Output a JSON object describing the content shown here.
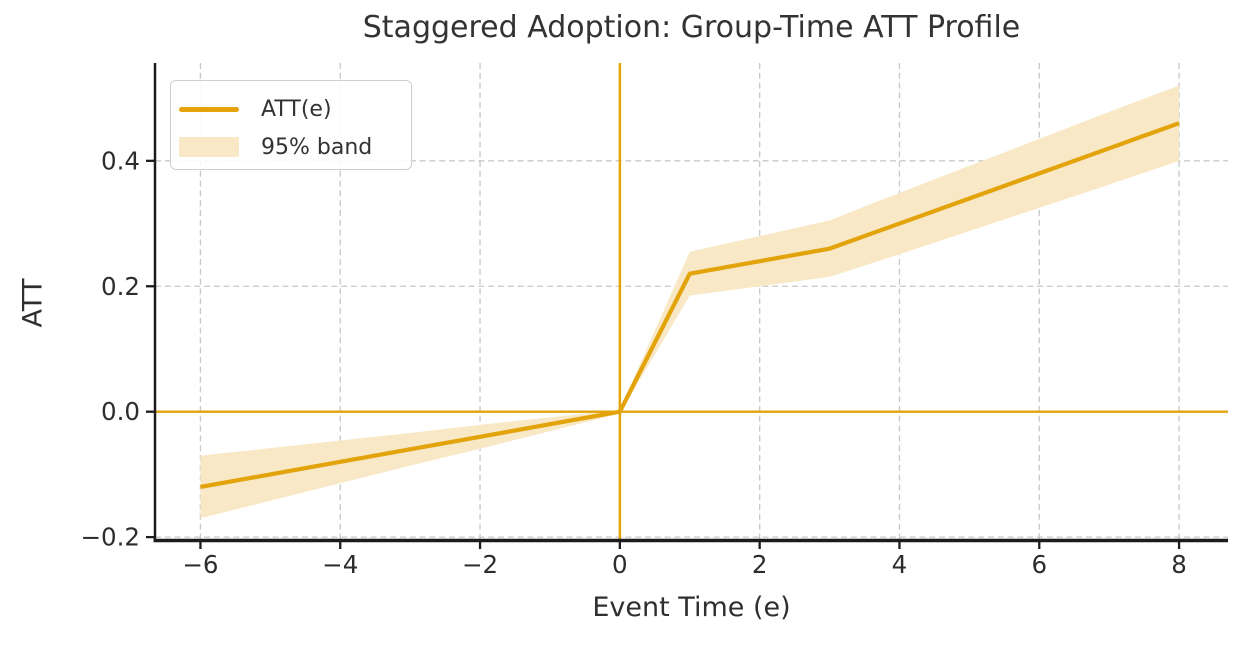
{
  "chart_data": {
    "type": "line",
    "title": "Staggered Adoption: Group-Time ATT Profile",
    "xlabel": "Event Time (e)",
    "ylabel": "ATT",
    "x": [
      -6,
      -5,
      -4,
      -3,
      -2,
      -1,
      0,
      1,
      2,
      3,
      4,
      5,
      6,
      7,
      8
    ],
    "series": [
      {
        "name": "ATT(e)",
        "values": [
          -0.12,
          -0.1,
          -0.08,
          -0.06,
          -0.04,
          -0.02,
          0.0,
          0.22,
          0.24,
          0.26,
          0.3,
          0.34,
          0.38,
          0.42,
          0.46
        ]
      }
    ],
    "band": {
      "name": "95% band",
      "lower": [
        -0.17,
        -0.142,
        -0.114,
        -0.086,
        -0.059,
        -0.031,
        -0.003,
        0.185,
        0.2,
        0.215,
        0.251,
        0.288,
        0.325,
        0.362,
        0.4
      ],
      "upper": [
        -0.07,
        -0.058,
        -0.046,
        -0.034,
        -0.021,
        -0.009,
        0.003,
        0.255,
        0.28,
        0.305,
        0.349,
        0.392,
        0.435,
        0.478,
        0.52
      ]
    },
    "reference_lines": {
      "vline_x": 0,
      "hline_y": 0
    },
    "xlim": [
      -6.65,
      8.7
    ],
    "ylim": [
      -0.203,
      0.556
    ],
    "xticks": [
      -6,
      -4,
      -2,
      0,
      2,
      4,
      6,
      8
    ],
    "xtick_labels": [
      "−6",
      "−4",
      "−2",
      "0",
      "2",
      "4",
      "6",
      "8"
    ],
    "yticks": [
      -0.2,
      0.0,
      0.2,
      0.4
    ],
    "ytick_labels": [
      "−0.2",
      "0.0",
      "0.2",
      "0.4"
    ],
    "grid": true,
    "legend_position": "upper-left",
    "colors": {
      "line": "#E2A30B",
      "band_fill": "#F8E8C6",
      "grid": "#C9C9C9",
      "spine": "#1C1C1C",
      "title_text": "#333333",
      "tick_text": "#2D2D2D"
    }
  }
}
